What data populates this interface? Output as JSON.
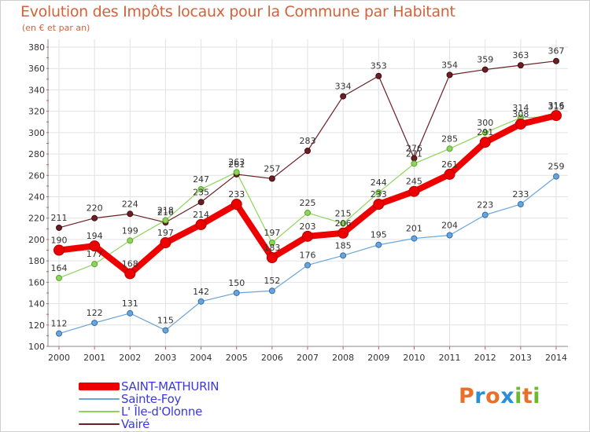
{
  "title": "Evolution des Impôts locaux pour la Commune par Habitant",
  "subtitle": "(en € et par an)",
  "logo": {
    "letters": [
      "P",
      "r",
      "o",
      "x",
      "i",
      "t",
      "i"
    ],
    "colors": [
      "#e8702a",
      "#2a8fd4",
      "#e8702a",
      "#2a8fd4",
      "#6cb82e",
      "#e8702a",
      "#6cb82e"
    ]
  },
  "chart_data": {
    "type": "line",
    "title": "Evolution des Impôts locaux pour la Commune par Habitant",
    "subtitle": "(en € et par an)",
    "xlabel": "",
    "ylabel": "",
    "ylim": [
      100,
      380
    ],
    "yticks": [
      100,
      120,
      140,
      160,
      180,
      200,
      220,
      240,
      260,
      280,
      300,
      320,
      340,
      360,
      380
    ],
    "x": [
      2000,
      2001,
      2002,
      2003,
      2004,
      2005,
      2006,
      2007,
      2008,
      2009,
      2010,
      2011,
      2012,
      2013,
      2014
    ],
    "series": [
      {
        "name": "Vairé",
        "color": "#6b1f24",
        "values": [
          211,
          220,
          224,
          216,
          235,
          261,
          257,
          283,
          334,
          353,
          276,
          354,
          359,
          363,
          367
        ]
      },
      {
        "name": "L' Île-d'Olonne",
        "color": "#8fd45a",
        "values": [
          164,
          177,
          199,
          218,
          247,
          263,
          197,
          225,
          215,
          244,
          271,
          285,
          300,
          314,
          315
        ]
      },
      {
        "name": "Sainte-Foy",
        "color": "#6aa4d8",
        "values": [
          112,
          122,
          131,
          115,
          142,
          150,
          152,
          176,
          185,
          195,
          201,
          204,
          223,
          233,
          259
        ]
      },
      {
        "name": "SAINT-MATHURIN",
        "color": "#ee0000",
        "values": [
          190,
          194,
          168,
          197,
          214,
          233,
          183,
          203,
          206,
          233,
          245,
          261,
          291,
          308,
          316
        ]
      }
    ],
    "legend": [
      "SAINT-MATHURIN",
      "Sainte-Foy",
      "L' Île-d'Olonne",
      "Vairé"
    ],
    "grid": true,
    "legend_position": "bottom-left"
  }
}
